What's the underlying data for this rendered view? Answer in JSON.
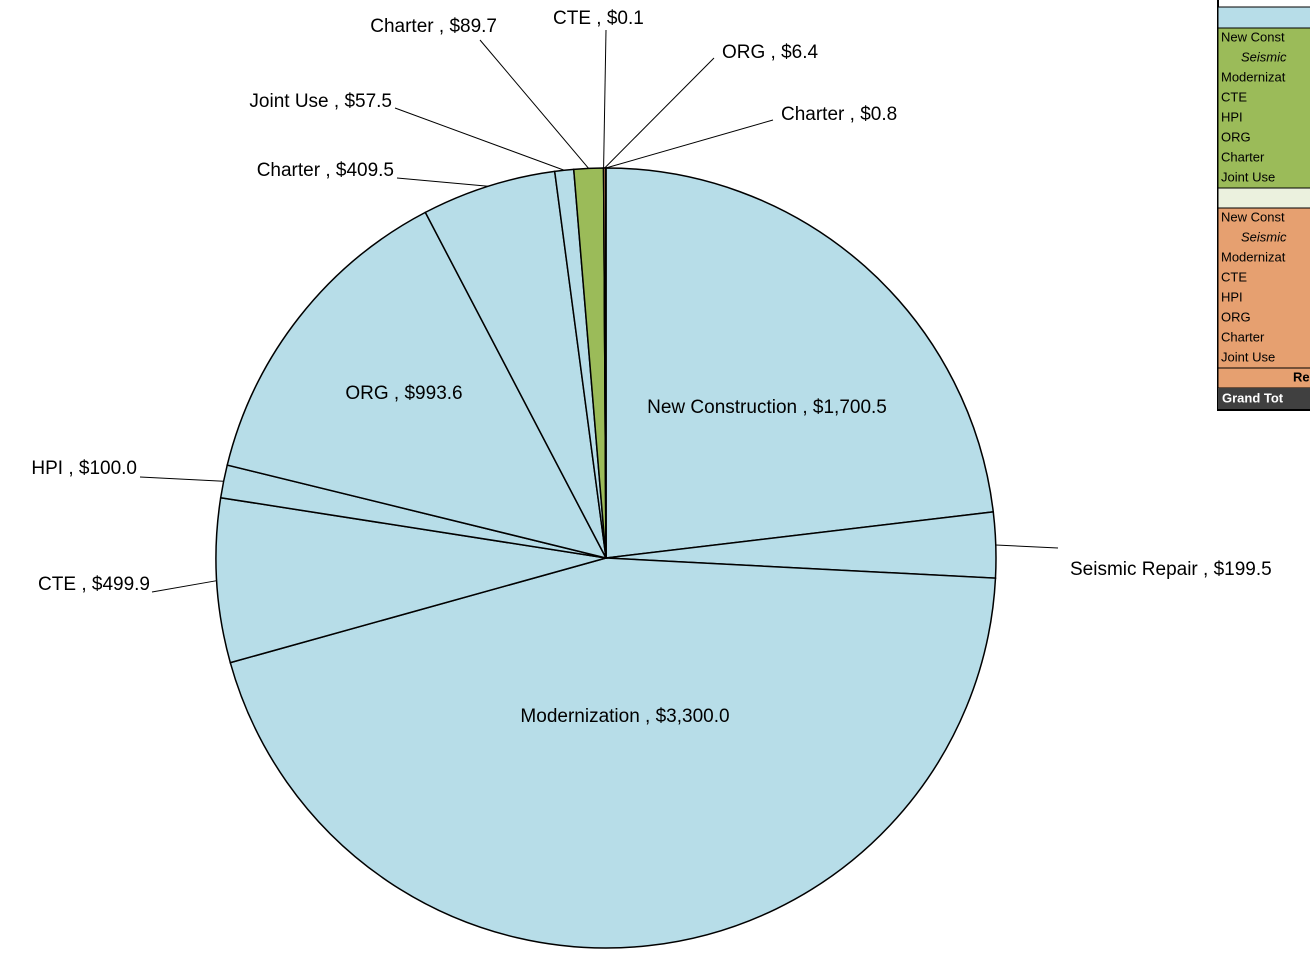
{
  "chart_data": {
    "type": "pie",
    "values": [
      1700.5,
      199.5,
      3300.0,
      499.9,
      100.0,
      993.6,
      409.5,
      57.5,
      89.7,
      0.1,
      6.4,
      0.8
    ],
    "value_labels": [
      "New Construction , $1,700.5",
      "Seismic Repair , $199.5",
      "Modernization , $3,300.0",
      "CTE , $499.9",
      "HPI , $100.0",
      "ORG , $993.6",
      "Charter , $409.5",
      "Joint Use , $57.5",
      "Charter , $89.7",
      "CTE , $0.1",
      "ORG , $6.4",
      "Charter , $0.8"
    ],
    "colors": [
      "#b7dde8",
      "#b7dde8",
      "#b7dde8",
      "#b7dde8",
      "#b7dde8",
      "#b7dde8",
      "#b7dde8",
      "#b7dde8",
      "#9bbb59",
      "#9bbb59",
      "#e6a070",
      "#e6a070"
    ]
  },
  "table": {
    "sections": [
      {
        "color": "#9bbb59",
        "rows": [
          "New Const",
          "Seismic",
          "Modernizat",
          "CTE",
          "HPI",
          "ORG",
          "Charter",
          "Joint Use"
        ]
      },
      {
        "color": "#e6a070",
        "rows": [
          "New Const",
          "Seismic",
          "Modernizat",
          "CTE",
          "HPI",
          "ORG",
          "Charter",
          "Joint Use"
        ]
      }
    ],
    "subtotal": "Re",
    "grand_total": "Grand Tot"
  }
}
